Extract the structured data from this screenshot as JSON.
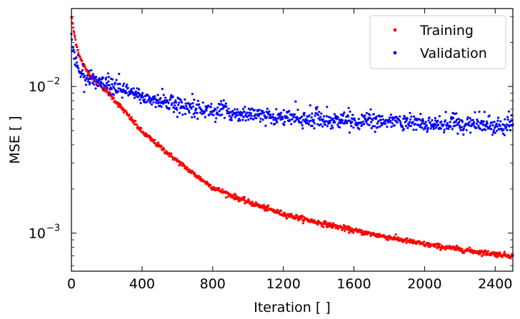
{
  "chart_data": {
    "type": "scatter",
    "title": "",
    "xlabel": "Iteration [ ]",
    "ylabel": "MSE [ ]",
    "xlim": [
      0,
      2500
    ],
    "ylim": [
      0.00055,
      0.034
    ],
    "yscale": "log",
    "xticks": [
      0,
      400,
      800,
      1200,
      1600,
      2000,
      2400
    ],
    "xtick_labels": [
      "0",
      "400",
      "800",
      "1200",
      "1600",
      "2000",
      "2400"
    ],
    "yticks": [
      {
        "value": 0.01,
        "base": "10",
        "exp": "−2"
      },
      {
        "value": 0.001,
        "base": "10",
        "exp": "−3"
      }
    ],
    "legend_position": "top-right",
    "series": [
      {
        "name": "Training",
        "color": "#ff0000",
        "noise": 0.02,
        "x": [
          0,
          10,
          25,
          50,
          75,
          100,
          150,
          200,
          300,
          400,
          500,
          600,
          700,
          800,
          900,
          1000,
          1100,
          1200,
          1300,
          1400,
          1500,
          1600,
          1700,
          1800,
          1900,
          2000,
          2100,
          2200,
          2300,
          2400,
          2500
        ],
        "y": [
          0.03,
          0.025,
          0.02,
          0.0155,
          0.0135,
          0.0122,
          0.0106,
          0.0093,
          0.0068,
          0.0049,
          0.0039,
          0.0031,
          0.0025,
          0.00205,
          0.00182,
          0.00163,
          0.00148,
          0.00135,
          0.00126,
          0.00118,
          0.00111,
          0.00104,
          0.000985,
          0.000935,
          0.000885,
          0.00084,
          0.000805,
          0.000775,
          0.000745,
          0.00072,
          0.0007
        ]
      },
      {
        "name": "Validation",
        "color": "#0000ff",
        "noise": 0.06,
        "x": [
          0,
          10,
          25,
          50,
          75,
          100,
          150,
          200,
          300,
          400,
          500,
          600,
          700,
          800,
          900,
          1000,
          1200,
          1400,
          1600,
          1800,
          2000,
          2200,
          2400,
          2500
        ],
        "y": [
          0.021,
          0.017,
          0.0145,
          0.0125,
          0.0116,
          0.0111,
          0.0106,
          0.0102,
          0.0093,
          0.0085,
          0.0079,
          0.0074,
          0.0071,
          0.0068,
          0.0066,
          0.0064,
          0.0061,
          0.0059,
          0.0058,
          0.0057,
          0.0056,
          0.0055,
          0.0054,
          0.0054
        ]
      }
    ]
  }
}
